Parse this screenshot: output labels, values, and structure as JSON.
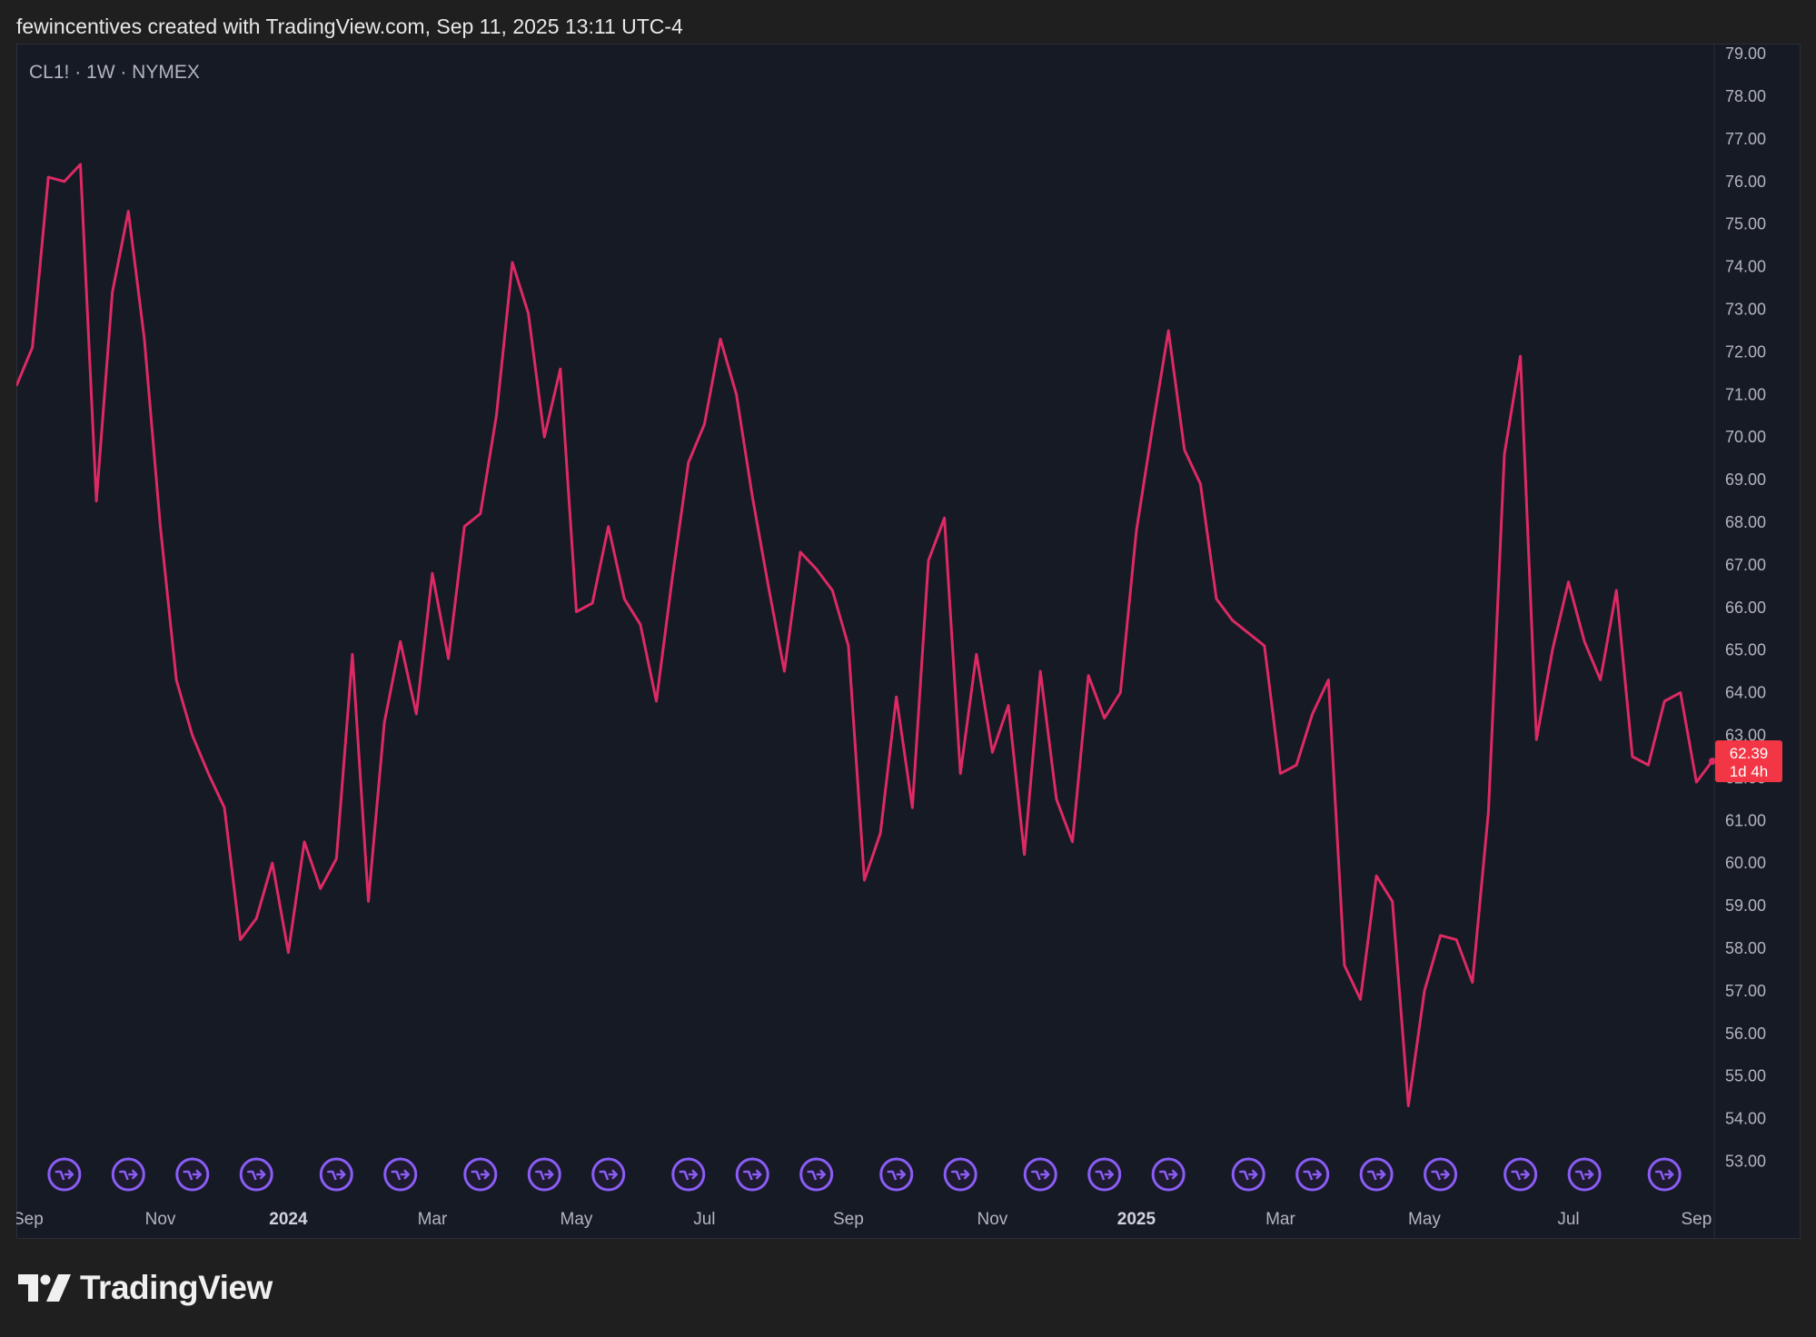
{
  "header": {
    "text": "fewincentives created with TradingView.com, Sep 11, 2025 13:11 UTC-4"
  },
  "symbol": {
    "label": "CL1! · 1W · NYMEX"
  },
  "logo": {
    "text": "TradingView"
  },
  "colors": {
    "line": "#dd2a64",
    "background": "#161a25",
    "page_background": "#1f1f1f",
    "axis_text": "#b2b5be",
    "price_tag": "#f23645",
    "event_icon": "#8b5cf6"
  },
  "price_tag": {
    "price": "62.39",
    "countdown": "1d 4h"
  },
  "chart_data": {
    "type": "line",
    "title": "",
    "xlabel": "",
    "ylabel": "",
    "ylim": [
      52,
      79
    ],
    "y_ticks": [
      "53.00",
      "54.00",
      "55.00",
      "56.00",
      "57.00",
      "58.00",
      "59.00",
      "60.00",
      "61.00",
      "62.00",
      "63.00",
      "64.00",
      "65.00",
      "66.00",
      "67.00",
      "68.00",
      "69.00",
      "70.00",
      "71.00",
      "72.00",
      "73.00",
      "74.00",
      "75.00",
      "76.00",
      "77.00",
      "78.00",
      "79.00"
    ],
    "x_ticks": [
      {
        "label": "Sep",
        "week": 0,
        "bold": false
      },
      {
        "label": "Nov",
        "week": 9,
        "bold": false
      },
      {
        "label": "2024",
        "week": 17,
        "bold": true
      },
      {
        "label": "Mar",
        "week": 26,
        "bold": false
      },
      {
        "label": "May",
        "week": 35,
        "bold": false
      },
      {
        "label": "Jul",
        "week": 43,
        "bold": false
      },
      {
        "label": "Sep",
        "week": 52,
        "bold": false
      },
      {
        "label": "Nov",
        "week": 61,
        "bold": false
      },
      {
        "label": "2025",
        "week": 70,
        "bold": true
      },
      {
        "label": "Mar",
        "week": 79,
        "bold": false
      },
      {
        "label": "May",
        "week": 88,
        "bold": false
      },
      {
        "label": "Jul",
        "week": 97,
        "bold": false
      },
      {
        "label": "Sep",
        "week": 105,
        "bold": false
      }
    ],
    "x_axis_note": "x values are weekly bar indices; label weeks as per x_ticks",
    "series": [
      {
        "values": [
          71.2,
          72.1,
          76.1,
          76.0,
          76.4,
          68.5,
          73.4,
          75.3,
          72.3,
          67.9,
          64.3,
          63.0,
          62.1,
          61.3,
          58.2,
          58.7,
          60.0,
          57.9,
          60.5,
          59.4,
          60.1,
          64.9,
          59.1,
          63.3,
          65.2,
          63.5,
          66.8,
          64.8,
          67.9,
          68.2,
          70.5,
          74.1,
          72.9,
          70.0,
          71.6,
          65.9,
          66.1,
          67.9,
          66.2,
          65.6,
          63.8,
          66.7,
          69.4,
          70.3,
          72.3,
          71.0,
          68.6,
          66.5,
          64.5,
          67.3,
          66.9,
          66.4,
          65.1,
          59.6,
          60.7,
          63.9,
          61.3,
          67.1,
          68.1,
          62.1,
          64.9,
          62.6,
          63.7,
          60.2,
          64.5,
          61.5,
          60.5,
          64.4,
          63.4,
          64.0,
          67.8,
          70.2,
          72.5,
          69.7,
          68.9,
          66.2,
          65.7,
          65.4,
          65.1,
          62.1,
          62.3,
          63.5,
          64.3,
          57.6,
          56.8,
          59.7,
          59.1,
          54.3,
          57.0,
          58.3,
          58.2,
          57.2,
          61.2,
          69.6,
          71.9,
          62.9,
          65.0,
          66.6,
          65.2,
          64.3,
          66.4,
          62.5,
          62.3,
          63.8,
          64.0,
          61.9,
          62.4
        ]
      }
    ],
    "events_weeks": [
      3,
      7,
      11,
      15,
      20,
      24,
      29,
      33,
      37,
      42,
      46,
      50,
      55,
      59,
      64,
      68,
      72,
      77,
      81,
      85,
      89,
      94,
      98,
      103
    ],
    "last_value": 62.39
  }
}
